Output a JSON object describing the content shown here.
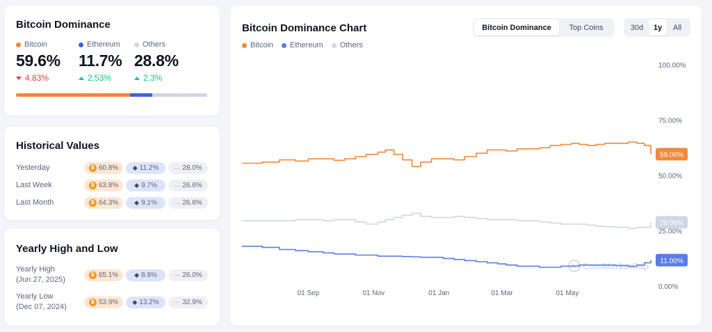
{
  "dominance": {
    "title": "Bitcoin Dominance",
    "coins": [
      {
        "name": "Bitcoin",
        "value": "59.6%",
        "change": "4.83%",
        "direction": "down",
        "color": "#f2883a"
      },
      {
        "name": "Ethereum",
        "value": "11.7%",
        "change": "2.53%",
        "direction": "up",
        "color": "#3f62e3"
      },
      {
        "name": "Others",
        "value": "28.8%",
        "change": "2.3%",
        "direction": "up",
        "color": "#cfd6e4"
      }
    ],
    "bar_fractions": [
      0.596,
      0.117,
      0.288
    ]
  },
  "historical": {
    "title": "Historical Values",
    "rows": [
      {
        "label": "Yesterday",
        "btc": "60.8%",
        "eth": "11.2%",
        "others": "28.0%"
      },
      {
        "label": "Last Week",
        "btc": "63.8%",
        "eth": "9.7%",
        "others": "26.6%"
      },
      {
        "label": "Last Month",
        "btc": "64.3%",
        "eth": "9.1%",
        "others": "26.6%"
      }
    ]
  },
  "yearly": {
    "title": "Yearly High and Low",
    "rows": [
      {
        "label": "Yearly High",
        "date": "(Jun 27, 2025)",
        "btc": "65.1%",
        "eth": "8.9%",
        "others": "26.0%"
      },
      {
        "label": "Yearly Low",
        "date": "(Dec 07, 2024)",
        "btc": "53.9%",
        "eth": "13.2%",
        "others": "32.9%"
      }
    ]
  },
  "chart": {
    "title": "Bitcoin Dominance Chart",
    "view_tabs": [
      {
        "label": "Bitcoin Dominance",
        "active": true
      },
      {
        "label": "Top Coins",
        "active": false
      }
    ],
    "range_tabs": [
      {
        "label": "30d",
        "active": false
      },
      {
        "label": "1y",
        "active": true
      },
      {
        "label": "All",
        "active": false
      }
    ],
    "watermark": "CoinMarketCap",
    "badges": {
      "bitcoin": "59.00%",
      "others": "28.00%",
      "ethereum": "11.00%"
    }
  },
  "chart_data": {
    "type": "line",
    "title": "Bitcoin Dominance Chart",
    "xlabel": "",
    "ylabel": "",
    "ylim": [
      0,
      100
    ],
    "yticks": [
      "100.00%",
      "75.00%",
      "50.00%",
      "25.00%",
      "0.00%"
    ],
    "ytick_values": [
      100,
      75,
      50,
      25,
      0
    ],
    "xticks": [
      {
        "label": "01 Sep",
        "x": "2024-09-01"
      },
      {
        "label": "01 Nov",
        "x": "2024-11-01"
      },
      {
        "label": "01 Jan",
        "x": "2025-01-01"
      },
      {
        "label": "01 Mar",
        "x": "2025-03-01"
      },
      {
        "label": "01 May",
        "x": "2025-05-01"
      }
    ],
    "x_range": [
      "2024-07-01",
      "2025-07-18"
    ],
    "legend_position": "top-left",
    "grid": false,
    "series": [
      {
        "name": "Bitcoin",
        "color": "#f2883a",
        "points": [
          [
            "2024-07-01",
            55.5
          ],
          [
            "2024-07-20",
            56.0
          ],
          [
            "2024-08-05",
            57.0
          ],
          [
            "2024-08-20",
            56.5
          ],
          [
            "2024-09-01",
            57.5
          ],
          [
            "2024-09-15",
            57.5
          ],
          [
            "2024-09-25",
            56.8
          ],
          [
            "2024-10-05",
            57.5
          ],
          [
            "2024-10-15",
            58.5
          ],
          [
            "2024-10-25",
            59.5
          ],
          [
            "2024-11-05",
            60.5
          ],
          [
            "2024-11-12",
            61.5
          ],
          [
            "2024-11-20",
            59.5
          ],
          [
            "2024-11-28",
            57.0
          ],
          [
            "2024-12-07",
            54.0
          ],
          [
            "2024-12-15",
            56.0
          ],
          [
            "2024-12-25",
            57.5
          ],
          [
            "2025-01-05",
            57.5
          ],
          [
            "2025-01-15",
            57.0
          ],
          [
            "2025-01-25",
            58.5
          ],
          [
            "2025-02-05",
            60.0
          ],
          [
            "2025-02-15",
            61.5
          ],
          [
            "2025-02-25",
            61.5
          ],
          [
            "2025-03-05",
            61.0
          ],
          [
            "2025-03-15",
            62.0
          ],
          [
            "2025-03-25",
            62.0
          ],
          [
            "2025-04-05",
            62.5
          ],
          [
            "2025-04-15",
            63.5
          ],
          [
            "2025-04-25",
            64.0
          ],
          [
            "2025-05-05",
            64.5
          ],
          [
            "2025-05-12",
            64.0
          ],
          [
            "2025-05-20",
            63.5
          ],
          [
            "2025-05-28",
            64.0
          ],
          [
            "2025-06-05",
            64.5
          ],
          [
            "2025-06-15",
            64.5
          ],
          [
            "2025-06-27",
            65.1
          ],
          [
            "2025-07-05",
            64.5
          ],
          [
            "2025-07-12",
            63.5
          ],
          [
            "2025-07-18",
            59.6
          ]
        ]
      },
      {
        "name": "Others",
        "color": "#cfd6e4",
        "points": [
          [
            "2024-07-01",
            29.5
          ],
          [
            "2024-07-20",
            29.5
          ],
          [
            "2024-08-05",
            29.5
          ],
          [
            "2024-08-20",
            30.0
          ],
          [
            "2024-09-01",
            30.0
          ],
          [
            "2024-09-15",
            29.5
          ],
          [
            "2024-09-25",
            30.0
          ],
          [
            "2024-10-05",
            30.0
          ],
          [
            "2024-10-15",
            29.0
          ],
          [
            "2024-10-25",
            28.0
          ],
          [
            "2024-11-05",
            29.0
          ],
          [
            "2024-11-12",
            30.0
          ],
          [
            "2024-11-20",
            31.0
          ],
          [
            "2024-11-28",
            32.0
          ],
          [
            "2024-12-07",
            32.9
          ],
          [
            "2024-12-15",
            31.5
          ],
          [
            "2024-12-25",
            31.0
          ],
          [
            "2025-01-05",
            31.0
          ],
          [
            "2025-01-15",
            31.5
          ],
          [
            "2025-01-25",
            31.0
          ],
          [
            "2025-02-05",
            30.5
          ],
          [
            "2025-02-15",
            30.0
          ],
          [
            "2025-02-25",
            30.0
          ],
          [
            "2025-03-05",
            30.0
          ],
          [
            "2025-03-15",
            29.5
          ],
          [
            "2025-03-25",
            29.5
          ],
          [
            "2025-04-05",
            29.0
          ],
          [
            "2025-04-15",
            28.5
          ],
          [
            "2025-04-25",
            28.0
          ],
          [
            "2025-05-05",
            28.0
          ],
          [
            "2025-05-12",
            28.0
          ],
          [
            "2025-05-20",
            27.5
          ],
          [
            "2025-05-28",
            27.0
          ],
          [
            "2025-06-05",
            26.8
          ],
          [
            "2025-06-15",
            26.6
          ],
          [
            "2025-06-27",
            26.0
          ],
          [
            "2025-07-05",
            26.5
          ],
          [
            "2025-07-12",
            26.6
          ],
          [
            "2025-07-18",
            28.8
          ]
        ]
      },
      {
        "name": "Ethereum",
        "color": "#5a7be8",
        "points": [
          [
            "2024-07-01",
            18.0
          ],
          [
            "2024-07-20",
            17.5
          ],
          [
            "2024-08-05",
            16.5
          ],
          [
            "2024-08-20",
            16.0
          ],
          [
            "2024-09-01",
            15.5
          ],
          [
            "2024-09-15",
            15.0
          ],
          [
            "2024-09-25",
            14.5
          ],
          [
            "2024-10-05",
            14.5
          ],
          [
            "2024-10-15",
            14.0
          ],
          [
            "2024-10-25",
            14.0
          ],
          [
            "2024-11-05",
            13.5
          ],
          [
            "2024-11-12",
            13.5
          ],
          [
            "2024-11-20",
            13.5
          ],
          [
            "2024-11-28",
            13.3
          ],
          [
            "2024-12-07",
            13.2
          ],
          [
            "2024-12-15",
            13.0
          ],
          [
            "2024-12-25",
            13.0
          ],
          [
            "2025-01-05",
            12.5
          ],
          [
            "2025-01-15",
            12.0
          ],
          [
            "2025-01-25",
            11.5
          ],
          [
            "2025-02-05",
            11.0
          ],
          [
            "2025-02-15",
            10.5
          ],
          [
            "2025-02-25",
            10.0
          ],
          [
            "2025-03-05",
            9.5
          ],
          [
            "2025-03-15",
            9.0
          ],
          [
            "2025-03-25",
            9.0
          ],
          [
            "2025-04-05",
            8.5
          ],
          [
            "2025-04-15",
            8.5
          ],
          [
            "2025-04-25",
            9.0
          ],
          [
            "2025-05-05",
            9.0
          ],
          [
            "2025-05-12",
            9.5
          ],
          [
            "2025-05-20",
            9.5
          ],
          [
            "2025-05-28",
            9.5
          ],
          [
            "2025-06-05",
            9.5
          ],
          [
            "2025-06-15",
            9.3
          ],
          [
            "2025-06-27",
            8.9
          ],
          [
            "2025-07-05",
            9.5
          ],
          [
            "2025-07-12",
            10.5
          ],
          [
            "2025-07-18",
            11.7
          ]
        ]
      }
    ]
  }
}
